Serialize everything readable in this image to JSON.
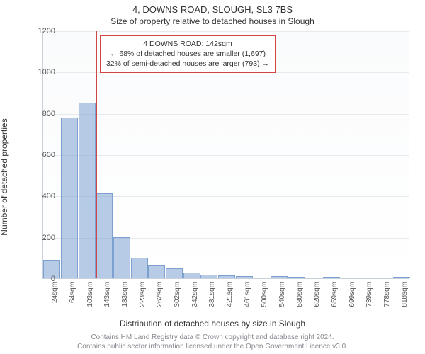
{
  "title": "4, DOWNS ROAD, SLOUGH, SL3 7BS",
  "subtitle": "Size of property relative to detached houses in Slough",
  "y_label": "Number of detached properties",
  "x_label": "Distribution of detached houses by size in Slough",
  "attribution_line1": "Contains HM Land Registry data © Crown copyright and database right 2024.",
  "attribution_line2": "Contains public sector information licensed under the Open Government Licence v3.0.",
  "chart": {
    "type": "histogram",
    "ylim": [
      0,
      1200
    ],
    "ytick_step": 200,
    "y_ticks": [
      0,
      200,
      400,
      600,
      800,
      1000,
      1200
    ],
    "x_ticks": [
      "24sqm",
      "64sqm",
      "103sqm",
      "143sqm",
      "183sqm",
      "223sqm",
      "262sqm",
      "302sqm",
      "342sqm",
      "381sqm",
      "421sqm",
      "461sqm",
      "500sqm",
      "540sqm",
      "580sqm",
      "620sqm",
      "659sqm",
      "699sqm",
      "739sqm",
      "778sqm",
      "818sqm"
    ],
    "values": [
      90,
      780,
      850,
      410,
      198,
      100,
      62,
      48,
      28,
      18,
      14,
      10,
      0,
      12,
      6,
      0,
      4,
      0,
      0,
      0,
      3
    ],
    "bar_fill": "rgba(124,161,209,0.55)",
    "bar_stroke": "#7ca1d1",
    "background": "#fafbfc",
    "grid_color": "#e6e9ee",
    "axis_color": "#c7d0db",
    "xtick_fontsize": 10,
    "ytick_fontsize": 11,
    "marker": {
      "position_index": 3,
      "color": "#d04545",
      "line_width": 2
    },
    "callout": {
      "line1": "4 DOWNS ROAD: 142sqm",
      "line2": "← 68% of detached houses are smaller (1,697)",
      "line3": "32% of semi-detached houses are larger (793) →",
      "border_color": "#d04545",
      "background": "#ffffff",
      "fontsize": 10.5
    }
  }
}
